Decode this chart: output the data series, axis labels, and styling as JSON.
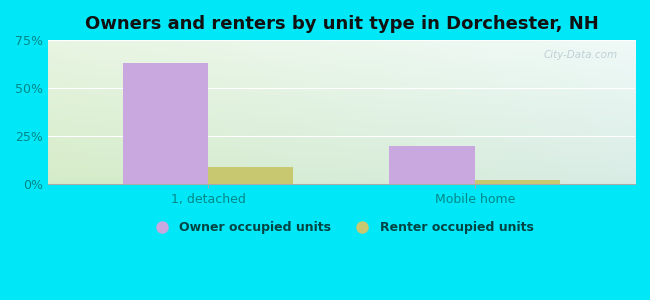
{
  "title": "Owners and renters by unit type in Dorchester, NH",
  "categories": [
    "1, detached",
    "Mobile home"
  ],
  "owner_values": [
    63.0,
    20.0
  ],
  "renter_values": [
    9.0,
    2.0
  ],
  "owner_color": "#c9a8e0",
  "renter_color": "#c8c870",
  "ylim": [
    0,
    75
  ],
  "yticks": [
    0,
    25,
    50,
    75
  ],
  "ytick_labels": [
    "0%",
    "25%",
    "50%",
    "75%"
  ],
  "bar_width": 0.32,
  "background_color": "#00e8f8",
  "plot_bg_top_left": "#e8f5e2",
  "plot_bg_top_right": "#e8f5f2",
  "plot_bg_bot_left": "#d5ecc8",
  "plot_bg_bot_right": "#d8ece5",
  "legend_owner": "Owner occupied units",
  "legend_renter": "Renter occupied units",
  "watermark": "City-Data.com",
  "title_fontsize": 13,
  "axis_fontsize": 9,
  "text_color": "#008888",
  "legend_text_color": "#004444"
}
